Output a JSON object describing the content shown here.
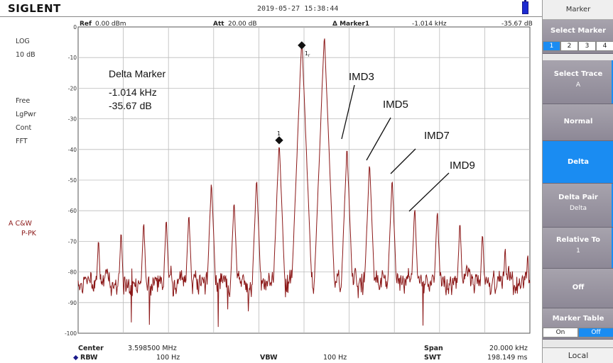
{
  "header": {
    "brand": "SIGLENT",
    "datetime": "2019-05-27  15:38:44"
  },
  "settings": {
    "ref_label": "Ref",
    "ref_value": "0.00 dBm",
    "att_label": "Att",
    "att_value": "20.00 dB",
    "marker_label": "Δ Marker1",
    "marker_freq": "-1.014 kHz",
    "marker_level": "-35.67 dB"
  },
  "left_info": {
    "scale_type": "LOG",
    "scale_div": "10 dB",
    "trigger": "Free",
    "power": "LgPwr",
    "sweep": "Cont",
    "mode": "FFT",
    "trace_a": "A C&W",
    "trace_det": "P-PK"
  },
  "annotations": {
    "delta_title": "Delta Marker",
    "delta_freq": "-1.014 kHz",
    "delta_level": "-35.67 dB",
    "imd3": "IMD3",
    "imd5": "IMD5",
    "imd7": "IMD7",
    "imd9": "IMD9",
    "marker_ref_tag": "1",
    "marker_tag": "1",
    "marker_r": "r"
  },
  "footer": {
    "center_label": "Center",
    "center_value": "3.598500 MHz",
    "rbw_label": "RBW",
    "rbw_value": "100 Hz",
    "vbw_label": "VBW",
    "vbw_value": "100 Hz",
    "span_label": "Span",
    "span_value": "20.000 kHz",
    "swt_label": "SWT",
    "swt_value": "198.149 ms"
  },
  "panel": {
    "title": "Marker",
    "select_marker": "Select Marker",
    "markers": [
      "1",
      "2",
      "3",
      "4"
    ],
    "select_trace": "Select Trace",
    "select_trace_value": "A",
    "normal": "Normal",
    "delta": "Delta",
    "delta_pair": "Delta Pair",
    "delta_pair_value": "Delta",
    "relative_to": "Relative To",
    "relative_to_value": "1",
    "off": "Off",
    "marker_table": "Marker Table",
    "on_label": "On",
    "off_label": "Off",
    "local": "Local"
  },
  "colors": {
    "trace": "#8b1818",
    "accent": "#1a8cf2"
  },
  "chart_data": {
    "type": "line",
    "xlabel": "",
    "ylabel": "",
    "ylim": [
      -100,
      0
    ],
    "yticks": [
      "0",
      "-10",
      "-20",
      "-30",
      "-40",
      "-50",
      "-60",
      "-70",
      "-80",
      "-90",
      "-100"
    ],
    "x_units": "kHz offset from center",
    "xlim": [
      -10,
      10
    ],
    "grid": true,
    "peaks": [
      {
        "x": -9.1,
        "y": -68
      },
      {
        "x": -8.1,
        "y": -66
      },
      {
        "x": -7.1,
        "y": -63
      },
      {
        "x": -6.1,
        "y": -62
      },
      {
        "x": -5.1,
        "y": -60
      },
      {
        "x": -4.1,
        "y": -50
      },
      {
        "x": -3.1,
        "y": -56
      },
      {
        "x": -2.1,
        "y": -49
      },
      {
        "x": -1.1,
        "y": -37
      },
      {
        "x": -0.1,
        "y": -3
      },
      {
        "x": 0.9,
        "y": -2
      },
      {
        "x": 1.9,
        "y": -39
      },
      {
        "x": 2.9,
        "y": -44
      },
      {
        "x": 3.9,
        "y": -49
      },
      {
        "x": 4.9,
        "y": -58
      },
      {
        "x": 5.9,
        "y": -59
      },
      {
        "x": 6.9,
        "y": -63
      },
      {
        "x": 7.9,
        "y": -66
      },
      {
        "x": 8.9,
        "y": -71
      },
      {
        "x": 9.9,
        "y": -73
      }
    ],
    "noise_floor": -83,
    "markers": [
      {
        "label": "1r",
        "x": -0.1,
        "y": -6
      },
      {
        "label": "1",
        "x": -1.1,
        "y": -37
      }
    ]
  }
}
